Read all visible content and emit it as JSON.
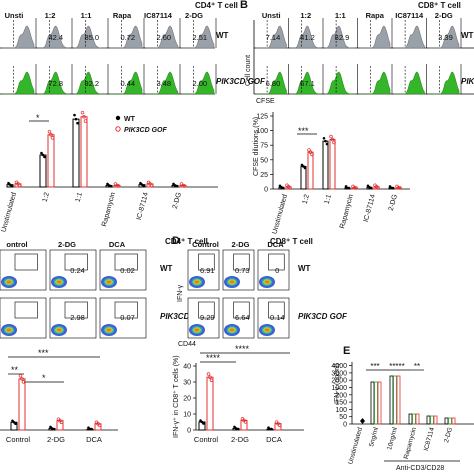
{
  "panels": {
    "A": {
      "label": "",
      "cell_type": "CD4⁺ T cell",
      "conditions": [
        "Unsti",
        "1:2",
        "1:1",
        "Rapa",
        "IC87114",
        "2-DG"
      ],
      "wt_label": "WT",
      "gof_label": "PIK3CD GOF",
      "wt_values": [
        "",
        "42.4",
        "85.0",
        "0.72",
        "2.60",
        "2.51"
      ],
      "gof_values": [
        "",
        "72.8",
        "92.2",
        "0.44",
        "3.48",
        "2.00"
      ],
      "legend_wt": "WT",
      "legend_gof": "PIK3CD GOF",
      "sig": "*",
      "x_labels": [
        "Unstimulated",
        "1:2",
        "1:1",
        "Rapamycin",
        "IC-87114",
        "2-DG"
      ]
    },
    "B": {
      "label": "B",
      "cell_type": "CD8⁺ T cell",
      "conditions": [
        "Unsti",
        "1:2",
        "1:1",
        "Rapa",
        "IC87114",
        "2-DG"
      ],
      "wt_label": "WT",
      "gof_label": "PIK",
      "wt_values": [
        "7.14",
        "41.2",
        "82.9",
        "",
        "",
        "3.39"
      ],
      "gof_values": [
        "6.80",
        "67.1",
        "",
        "",
        "",
        ""
      ],
      "y_axis_flow": "Cell count",
      "x_axis_flow": "CFSE",
      "ylabel": "CFSE dilutions (%)",
      "yticks": [
        "0",
        "25",
        "50",
        "75",
        "100",
        "125"
      ],
      "x_labels": [
        "Unstimulated",
        "1:2",
        "1:1",
        "Rapamycin",
        "IC-87114",
        "2-DG"
      ],
      "sig": "***"
    },
    "C": {
      "label": "",
      "cell_type": "CD4⁺ T cell",
      "conditions": [
        "ontrol",
        "2-DG",
        "DCA"
      ],
      "wt_label": "WT",
      "gof_label": "PIK3CD GOF",
      "wt_values": [
        "",
        "0.24",
        "0.02"
      ],
      "gof_values": [
        "",
        "2.98",
        "0.07"
      ],
      "sig_top": "***",
      "sig_a": "**",
      "sig_b": "*",
      "x_labels": [
        "Control",
        "2-DG",
        "DCA"
      ]
    },
    "D": {
      "label": "D",
      "cell_type": "CD8⁺ T cell",
      "conditions": [
        "Control",
        "2-DG",
        "DCA"
      ],
      "wt_label": "WT",
      "gof_label": "PIK3CD GOF",
      "wt_values": [
        "6.91",
        "0.73",
        "0"
      ],
      "gof_values": [
        "9.29",
        "6.64",
        "0.14"
      ],
      "y_axis_flow": "IFN-γ",
      "x_axis_flow": "CD44",
      "ylabel": "IFN-γ⁺ in CD8⁺ T cells (%)",
      "yticks": [
        "0",
        "10",
        "20",
        "30",
        "40"
      ],
      "x_labels": [
        "Control",
        "2-DG",
        "DCA"
      ],
      "sig_top": "****",
      "sig_a": "****"
    },
    "E": {
      "label": "E",
      "ylabel": "IFN-γ (ng/ml)",
      "yticks": [
        "0",
        "50",
        "100",
        "150",
        "200",
        "1000",
        "2000",
        "3000",
        "4000"
      ],
      "x_labels": [
        "Unstimulated",
        "5ng/ml",
        "10ng/ml",
        "Rapamycin",
        "IC87114",
        "2-DG"
      ],
      "group_label": "Anti-CD3/CD28",
      "sig": [
        "***",
        "*****",
        "**"
      ]
    }
  },
  "chart_data": [
    {
      "type": "bar",
      "title": "CFSE dilutions (%)",
      "ylabel": "CFSE dilutions (%)",
      "categories": [
        "Unstimulated",
        "1:2",
        "1:1",
        "Rapamycin",
        "IC-87114",
        "2-DG"
      ],
      "ylim": [
        0,
        125
      ],
      "series": [
        {
          "name": "WT",
          "values": [
            3,
            41,
            87,
            2,
            3,
            2
          ],
          "color": "#000000"
        },
        {
          "name": "PIK3CD GOF",
          "values": [
            4,
            67,
            90,
            2,
            4,
            2
          ],
          "color": "#e03030"
        }
      ]
    },
    {
      "type": "bar",
      "ylabel": "IFN-γ⁺ in CD8⁺ T cells (%)",
      "categories": [
        "Control",
        "2-DG",
        "DCA"
      ],
      "ylim": [
        0,
        40
      ],
      "series": [
        {
          "name": "WT",
          "values": [
            5,
            1,
            0.5
          ],
          "color": "#000000"
        },
        {
          "name": "PIK3CD GOF",
          "values": [
            33,
            6,
            4
          ],
          "color": "#e03030"
        }
      ]
    }
  ]
}
